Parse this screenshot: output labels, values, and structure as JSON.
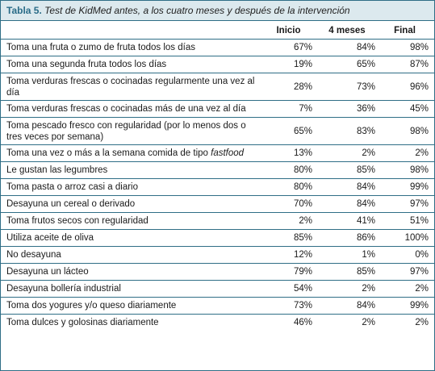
{
  "caption": {
    "label": "Tabla 5.",
    "title": "Test de KidMed antes, a los cuatro meses y después de la intervención"
  },
  "columns": [
    "",
    "Inicio",
    "4 meses",
    "Final"
  ],
  "rows": [
    {
      "label": "Toma una fruta o zumo de fruta todos los días",
      "values": [
        "67%",
        "84%",
        "98%"
      ]
    },
    {
      "label": "Toma una segunda fruta todos los días",
      "values": [
        "19%",
        "65%",
        "87%"
      ]
    },
    {
      "label": "Toma verduras frescas o cocinadas regularmente una vez al día",
      "values": [
        "28%",
        "73%",
        "96%"
      ]
    },
    {
      "label": "Toma verduras frescas o cocinadas más de una vez al día",
      "values": [
        "7%",
        "36%",
        "45%"
      ]
    },
    {
      "label": "Toma pescado fresco con regularidad (por lo menos dos o tres veces por semana)",
      "values": [
        "65%",
        "83%",
        "98%"
      ]
    },
    {
      "label": "Toma  una vez o más a la semana comida de tipo ",
      "label_italic": "fastfood",
      "values": [
        "13%",
        "2%",
        "2%"
      ]
    },
    {
      "label": "Le gustan las legumbres",
      "values": [
        "80%",
        "85%",
        "98%"
      ]
    },
    {
      "label": "Toma pasta o arroz casi a diario",
      "values": [
        "80%",
        "84%",
        "99%"
      ]
    },
    {
      "label": "Desayuna un cereal o derivado",
      "values": [
        "70%",
        "84%",
        "97%"
      ]
    },
    {
      "label": "Toma frutos secos con regularidad",
      "values": [
        "2%",
        "41%",
        "51%"
      ]
    },
    {
      "label": "Utiliza  aceite de oliva",
      "values": [
        "85%",
        "86%",
        "100%"
      ]
    },
    {
      "label": "No desayuna",
      "values": [
        "12%",
        "1%",
        "0%"
      ]
    },
    {
      "label": "Desayuna un lácteo",
      "values": [
        "79%",
        "85%",
        "97%"
      ]
    },
    {
      "label": "Desayuna bollería industrial",
      "values": [
        "54%",
        "2%",
        "2%"
      ]
    },
    {
      "label": "Toma dos yogures y/o queso diariamente",
      "values": [
        "73%",
        "84%",
        "99%"
      ]
    },
    {
      "label": "Toma dulces y golosinas diariamente",
      "values": [
        "46%",
        "2%",
        "2%"
      ]
    }
  ]
}
